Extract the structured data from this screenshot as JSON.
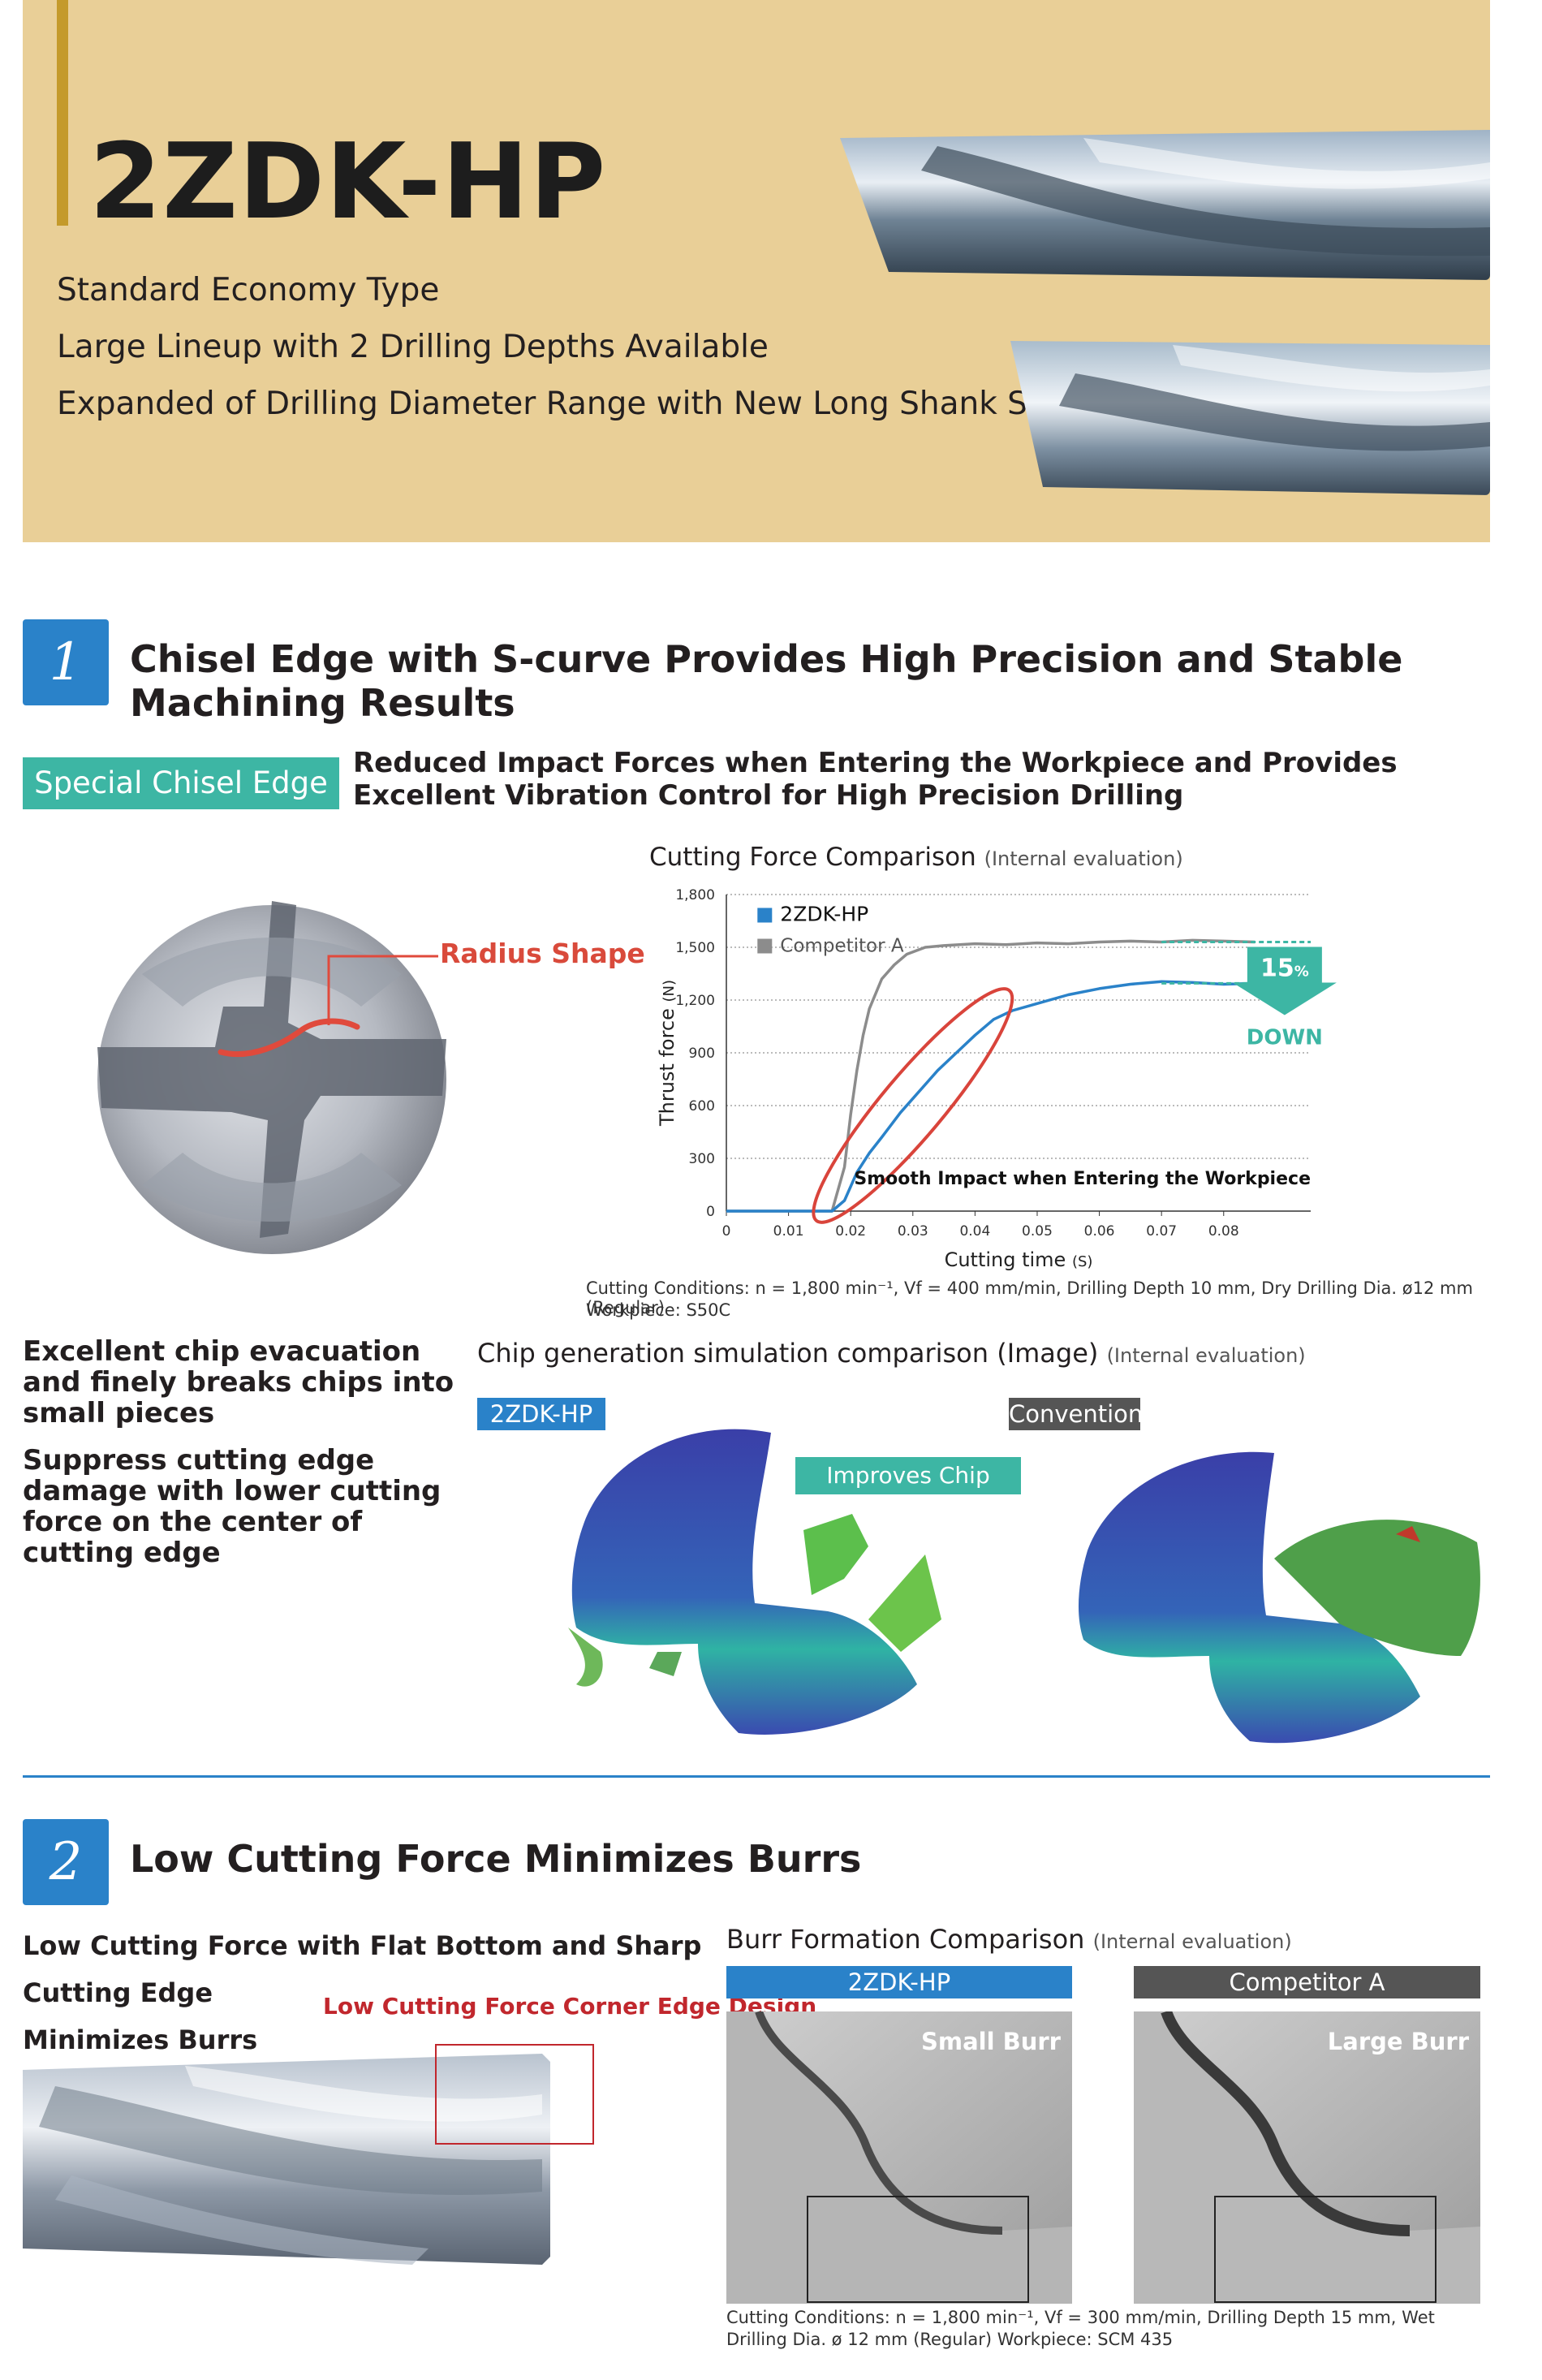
{
  "header": {
    "title": "2ZDK-HP",
    "lines": [
      "Standard Economy Type",
      "Large Lineup with 2 Drilling Depths Available",
      "Expanded of Drilling Diameter Range with New Long Shank Styles"
    ]
  },
  "section1": {
    "number": "1",
    "title": "Chisel Edge with S-curve Provides High Precision and Stable Machining Results",
    "label": "Special Chisel Edge",
    "description": "Reduced Impact Forces when Entering the Workpiece and Provides Excellent Vibration Control for High Precision Drilling",
    "radius_label": "Radius Shape",
    "chart_title": "Cutting Force Comparison",
    "chart_note": "(Internal evaluation)",
    "conditions_1": "Cutting Conditions: n = 1,800 min⁻¹, Vf = 400 mm/min, Drilling Depth 10 mm, Dry     Drilling Dia. ø12 mm (Regular)",
    "conditions_2": "Workpiece: S50C",
    "reduction_value": "15",
    "reduction_unit": "%",
    "reduction_word": "DOWN",
    "annotation": "Smooth Impact when Entering the Workpiece",
    "chip_title": "Chip generation simulation comparison (Image)",
    "chip_note": "(Internal evaluation)",
    "chip_points": [
      "Excellent chip evacuation and finely breaks chips into small pieces",
      "Suppress cutting edge damage with lower cutting force on the center of cutting edge"
    ],
    "chip_tag_left": "2ZDK-HP",
    "chip_tag_right": "Conventional",
    "chip_tag_middle": "Improves Chip Breaking"
  },
  "chart_data": {
    "type": "line",
    "title": "Cutting Force Comparison",
    "xlabel": "Cutting time",
    "xunit": "(S)",
    "ylabel": "Thrust force",
    "yunit": "(N)",
    "xlim": [
      0,
      0.094
    ],
    "ylim": [
      0,
      1800
    ],
    "xticks": [
      "0",
      "0.01",
      "0.02",
      "0.03",
      "0.04",
      "0.05",
      "0.06",
      "0.07",
      "0.08"
    ],
    "yticks": [
      "0",
      "300",
      "600",
      "900",
      "1,200",
      "1,500",
      "1,800"
    ],
    "grid": true,
    "legend": "top-left",
    "series": [
      {
        "name": "2ZDK-HP",
        "color": "#2a82c9",
        "x": [
          0,
          0.017,
          0.019,
          0.021,
          0.023,
          0.025,
          0.028,
          0.031,
          0.034,
          0.037,
          0.04,
          0.043,
          0.046,
          0.05,
          0.055,
          0.06,
          0.065,
          0.07,
          0.075,
          0.08,
          0.085
        ],
        "y": [
          0,
          0,
          60,
          220,
          330,
          420,
          560,
          680,
          800,
          900,
          1000,
          1090,
          1140,
          1180,
          1230,
          1265,
          1290,
          1305,
          1300,
          1290,
          1295
        ]
      },
      {
        "name": "Competitor A",
        "color": "#8c8c8c",
        "x": [
          0,
          0.017,
          0.019,
          0.02,
          0.021,
          0.022,
          0.023,
          0.025,
          0.027,
          0.029,
          0.032,
          0.035,
          0.04,
          0.045,
          0.05,
          0.055,
          0.06,
          0.065,
          0.07,
          0.075,
          0.08,
          0.085
        ],
        "y": [
          0,
          0,
          250,
          550,
          800,
          1000,
          1150,
          1320,
          1400,
          1460,
          1500,
          1510,
          1520,
          1515,
          1525,
          1520,
          1530,
          1535,
          1530,
          1540,
          1535,
          1530
        ]
      }
    ]
  },
  "section2": {
    "number": "2",
    "title": "Low Cutting Force Minimizes Burrs",
    "lead_1": "Low Cutting Force with Flat Bottom and Sharp Cutting Edge",
    "lead_2": "Minimizes Burrs",
    "corner_label": "Low Cutting Force Corner Edge Design",
    "burr_title": "Burr Formation Comparison",
    "burr_note": "(Internal evaluation)",
    "panel_left_tag": "2ZDK-HP",
    "panel_right_tag": "Competitor A",
    "panel_left_caption": "Small Burr",
    "panel_right_caption": "Large Burr",
    "conditions_1": "Cutting Conditions: n = 1,800 min⁻¹, Vf = 300 mm/min, Drilling Depth 15 mm, Wet",
    "conditions_2": "Drilling Dia. ø 12 mm (Regular)   Workpiece: SCM 435"
  }
}
